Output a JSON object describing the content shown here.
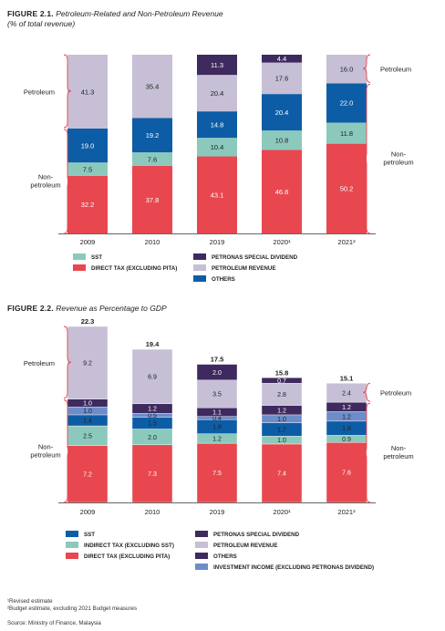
{
  "colors": {
    "direct_tax": "#E8474F",
    "sst": "#8CC9BD",
    "others": "#0D5DA6",
    "petroleum_revenue": "#C6BFD6",
    "petronas_special_dividend": "#3E2A5E",
    "indirect_tax": "#8CC9BD",
    "investment_income": "#6C8DC9",
    "sst_22": "#0D5DA6",
    "others_22": "#3E2A5E"
  },
  "figure1": {
    "label": "FIGURE 2.1.",
    "title": "Petroleum-Related and Non-Petroleum Revenue",
    "subtitle": "(% of total revenue)",
    "left_petroleum": "Petroleum",
    "left_nonpetroleum": [
      "Non-",
      "petroleum"
    ],
    "right_petroleum": "Petroleum",
    "right_nonpetroleum": [
      "Non-",
      "petroleum"
    ],
    "legend": [
      {
        "label": "SST",
        "color_key": "sst"
      },
      {
        "label": "DIRECT TAX (EXCLUDING PITA)",
        "color_key": "direct_tax"
      },
      {
        "label": "PETRONAS SPECIAL DIVIDEND",
        "color_key": "petronas_special_dividend"
      },
      {
        "label": "PETROLEUM REVENUE",
        "color_key": "petroleum_revenue"
      },
      {
        "label": "OTHERS",
        "color_key": "others"
      }
    ]
  },
  "figure2": {
    "label": "FIGURE 2.2.",
    "title": "Revenue as Percentage to GDP",
    "left_petroleum": "Petroleum",
    "left_nonpetroleum": [
      "Non-",
      "petroleum"
    ],
    "right_petroleum": "Petroleum",
    "right_nonpetroleum": [
      "Non-",
      "petroleum"
    ],
    "legend": [
      {
        "label": "SST",
        "color_key": "sst_22"
      },
      {
        "label": "INDIRECT TAX (EXCLUDING SST)",
        "color_key": "indirect_tax"
      },
      {
        "label": "DIRECT TAX (EXCLUDING PITA)",
        "color_key": "direct_tax"
      },
      {
        "label": "PETRONAS SPECIAL DIVIDEND",
        "color_key": "petronas_special_dividend"
      },
      {
        "label": "PETROLEUM REVENUE",
        "color_key": "petroleum_revenue"
      },
      {
        "label": "OTHERS",
        "color_key": "others_22"
      },
      {
        "label": "INVESTMENT INCOME (EXCLUDING PETRONAS DIVIDEND)",
        "color_key": "investment_income"
      }
    ]
  },
  "footnotes": [
    "¹Revised estimate",
    "²Budget estimate, excluding 2021 Budget measures"
  ],
  "source": "Source: Ministry of Finance, Malaysia",
  "chart_data": [
    {
      "type": "bar",
      "stacked": true,
      "title": "Petroleum-Related and Non-Petroleum Revenue",
      "subtitle": "(% of total revenue)",
      "categories": [
        "2009",
        "2010",
        "2019",
        "2020¹",
        "2021²"
      ],
      "ylim": [
        0,
        100
      ],
      "series": [
        {
          "name": "DIRECT TAX (EXCLUDING PITA)",
          "color_key": "direct_tax",
          "values": [
            32.2,
            37.8,
            43.1,
            46.8,
            50.2
          ]
        },
        {
          "name": "SST",
          "color_key": "sst",
          "values": [
            7.5,
            7.6,
            10.4,
            10.8,
            11.8
          ]
        },
        {
          "name": "OTHERS",
          "color_key": "others",
          "values": [
            19.0,
            19.2,
            14.8,
            20.4,
            22.0
          ]
        },
        {
          "name": "PETROLEUM REVENUE",
          "color_key": "petroleum_revenue",
          "values": [
            41.3,
            35.4,
            20.4,
            17.6,
            16.0
          ]
        },
        {
          "name": "PETRONAS SPECIAL DIVIDEND",
          "color_key": "petronas_special_dividend",
          "values": [
            0,
            0,
            11.3,
            4.4,
            0
          ]
        }
      ]
    },
    {
      "type": "bar",
      "stacked": true,
      "title": "Revenue as Percentage to GDP",
      "categories": [
        "2009",
        "2010",
        "2019",
        "2020¹",
        "2021²"
      ],
      "totals": [
        "22.3",
        "19.4",
        "17.5",
        "15.8",
        "15.1"
      ],
      "ylim": [
        0,
        22.3
      ],
      "series": [
        {
          "name": "DIRECT TAX (EXCLUDING PITA)",
          "color_key": "direct_tax",
          "values": [
            7.2,
            7.3,
            7.5,
            7.4,
            7.6
          ]
        },
        {
          "name": "INDIRECT TAX (EXCLUDING SST)",
          "color_key": "indirect_tax",
          "values": [
            2.5,
            2.0,
            1.2,
            1.0,
            0.9
          ]
        },
        {
          "name": "SST",
          "color_key": "sst_22",
          "values": [
            1.4,
            1.5,
            1.8,
            1.7,
            1.8
          ]
        },
        {
          "name": "INVESTMENT INCOME (EXCLUDING PETRONAS DIVIDEND)",
          "color_key": "investment_income",
          "values": [
            1.0,
            0.5,
            0.4,
            1.0,
            1.2
          ]
        },
        {
          "name": "OTHERS",
          "color_key": "others_22",
          "values": [
            1.0,
            1.2,
            1.1,
            1.2,
            1.2
          ]
        },
        {
          "name": "PETROLEUM REVENUE",
          "color_key": "petroleum_revenue",
          "values": [
            9.2,
            6.9,
            3.5,
            2.8,
            2.4
          ]
        },
        {
          "name": "PETRONAS SPECIAL DIVIDEND",
          "color_key": "petronas_special_dividend",
          "values": [
            0,
            0,
            2.0,
            0.7,
            0
          ]
        }
      ]
    }
  ]
}
